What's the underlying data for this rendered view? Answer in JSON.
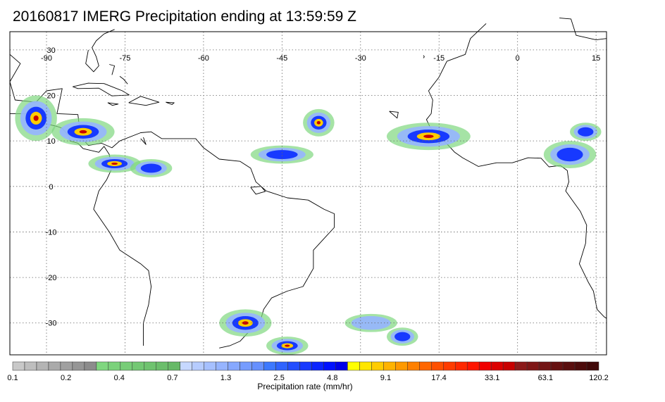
{
  "title": "20160817 IMERG Precipitation ending at 13:59:59 Z",
  "map": {
    "lon_range": [
      -97,
      17
    ],
    "lat_range": [
      -37,
      34
    ],
    "lon_ticks": [
      -90,
      -75,
      -60,
      -45,
      -30,
      -15,
      0,
      15
    ],
    "lon_tick_labels": [
      "-90",
      "-75",
      "-60",
      "-45",
      "-30",
      "-15",
      "0",
      "15"
    ],
    "lat_ticks": [
      30,
      20,
      10,
      0,
      -10,
      -20,
      -30
    ],
    "lat_tick_labels": [
      "30",
      "20",
      "10",
      "0",
      "-10",
      "-20",
      "-30"
    ],
    "grid": "dotted",
    "precip_regions": [
      {
        "lon": -83,
        "lat": 12,
        "rx": 6,
        "ry": 3,
        "intensity": 3
      },
      {
        "lon": -92,
        "lat": 15,
        "rx": 4,
        "ry": 5,
        "intensity": 3
      },
      {
        "lon": -77,
        "lat": 5,
        "rx": 5,
        "ry": 2,
        "intensity": 3
      },
      {
        "lon": -70,
        "lat": 4,
        "rx": 4,
        "ry": 2,
        "intensity": 2
      },
      {
        "lon": -38,
        "lat": 14,
        "rx": 3,
        "ry": 3,
        "intensity": 3
      },
      {
        "lon": -45,
        "lat": 7,
        "rx": 6,
        "ry": 2,
        "intensity": 2
      },
      {
        "lon": -17,
        "lat": 11,
        "rx": 8,
        "ry": 3,
        "intensity": 3
      },
      {
        "lon": 10,
        "lat": 7,
        "rx": 5,
        "ry": 3,
        "intensity": 2
      },
      {
        "lon": 13,
        "lat": 12,
        "rx": 3,
        "ry": 2,
        "intensity": 2
      },
      {
        "lon": -52,
        "lat": -30,
        "rx": 5,
        "ry": 3,
        "intensity": 3
      },
      {
        "lon": -44,
        "lat": -35,
        "rx": 4,
        "ry": 2,
        "intensity": 3
      },
      {
        "lon": -28,
        "lat": -30,
        "rx": 5,
        "ry": 2,
        "intensity": 1
      },
      {
        "lon": -22,
        "lat": -33,
        "rx": 3,
        "ry": 2,
        "intensity": 2
      }
    ]
  },
  "colorbar": {
    "caption": "Precipitation rate (mm/hr)",
    "tick_labels": [
      "0.1",
      "0.2",
      "0.4",
      "0.7",
      "1.3",
      "2.5",
      "4.8",
      "9.1",
      "17.4",
      "33.1",
      "63.1",
      "120.2"
    ],
    "colors": [
      "#c8c8c8",
      "#bebebe",
      "#b4b4b4",
      "#aaaaaa",
      "#a0a0a0",
      "#969696",
      "#8c8c8c",
      "#7fd77f",
      "#7bd27b",
      "#77cd77",
      "#73c873",
      "#6fc36f",
      "#6bbe6b",
      "#67b967",
      "#c6d8ff",
      "#b6ccff",
      "#a6c0ff",
      "#96b4ff",
      "#86a8ff",
      "#769cff",
      "#6690ff",
      "#3c78ff",
      "#2f63ff",
      "#234eff",
      "#1739ff",
      "#0b24ff",
      "#0010ff",
      "#0000e8",
      "#ffff00",
      "#ffe600",
      "#ffcc00",
      "#ffb300",
      "#ff9900",
      "#ff8000",
      "#ff6600",
      "#ff5000",
      "#ff3c00",
      "#ff2800",
      "#ff1400",
      "#f00000",
      "#dc0000",
      "#c80000",
      "#8c1a1a",
      "#7f1717",
      "#731414",
      "#661111",
      "#5a0e0e",
      "#4d0b0b",
      "#400808"
    ]
  }
}
